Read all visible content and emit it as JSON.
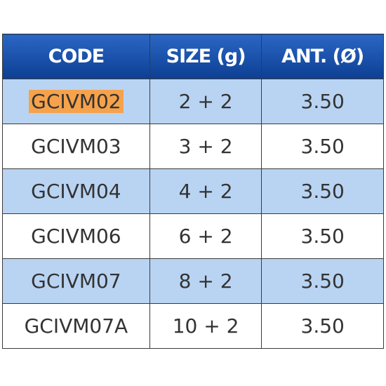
{
  "table": {
    "header": [
      "CODE",
      "SIZE (g)",
      "ANT. (Ø)"
    ],
    "rows": [
      [
        "GCIVM02",
        "2 + 2",
        "3.50"
      ],
      [
        "GCIVM03",
        "3 + 2",
        "3.50"
      ],
      [
        "GCIVM04",
        "4 + 2",
        "3.50"
      ],
      [
        "GCIVM06",
        "6 + 2",
        "3.50"
      ],
      [
        "GCIVM07",
        "8 + 2",
        "3.50"
      ],
      [
        "GCIVM07A",
        "10 + 2",
        "3.50"
      ]
    ]
  }
}
